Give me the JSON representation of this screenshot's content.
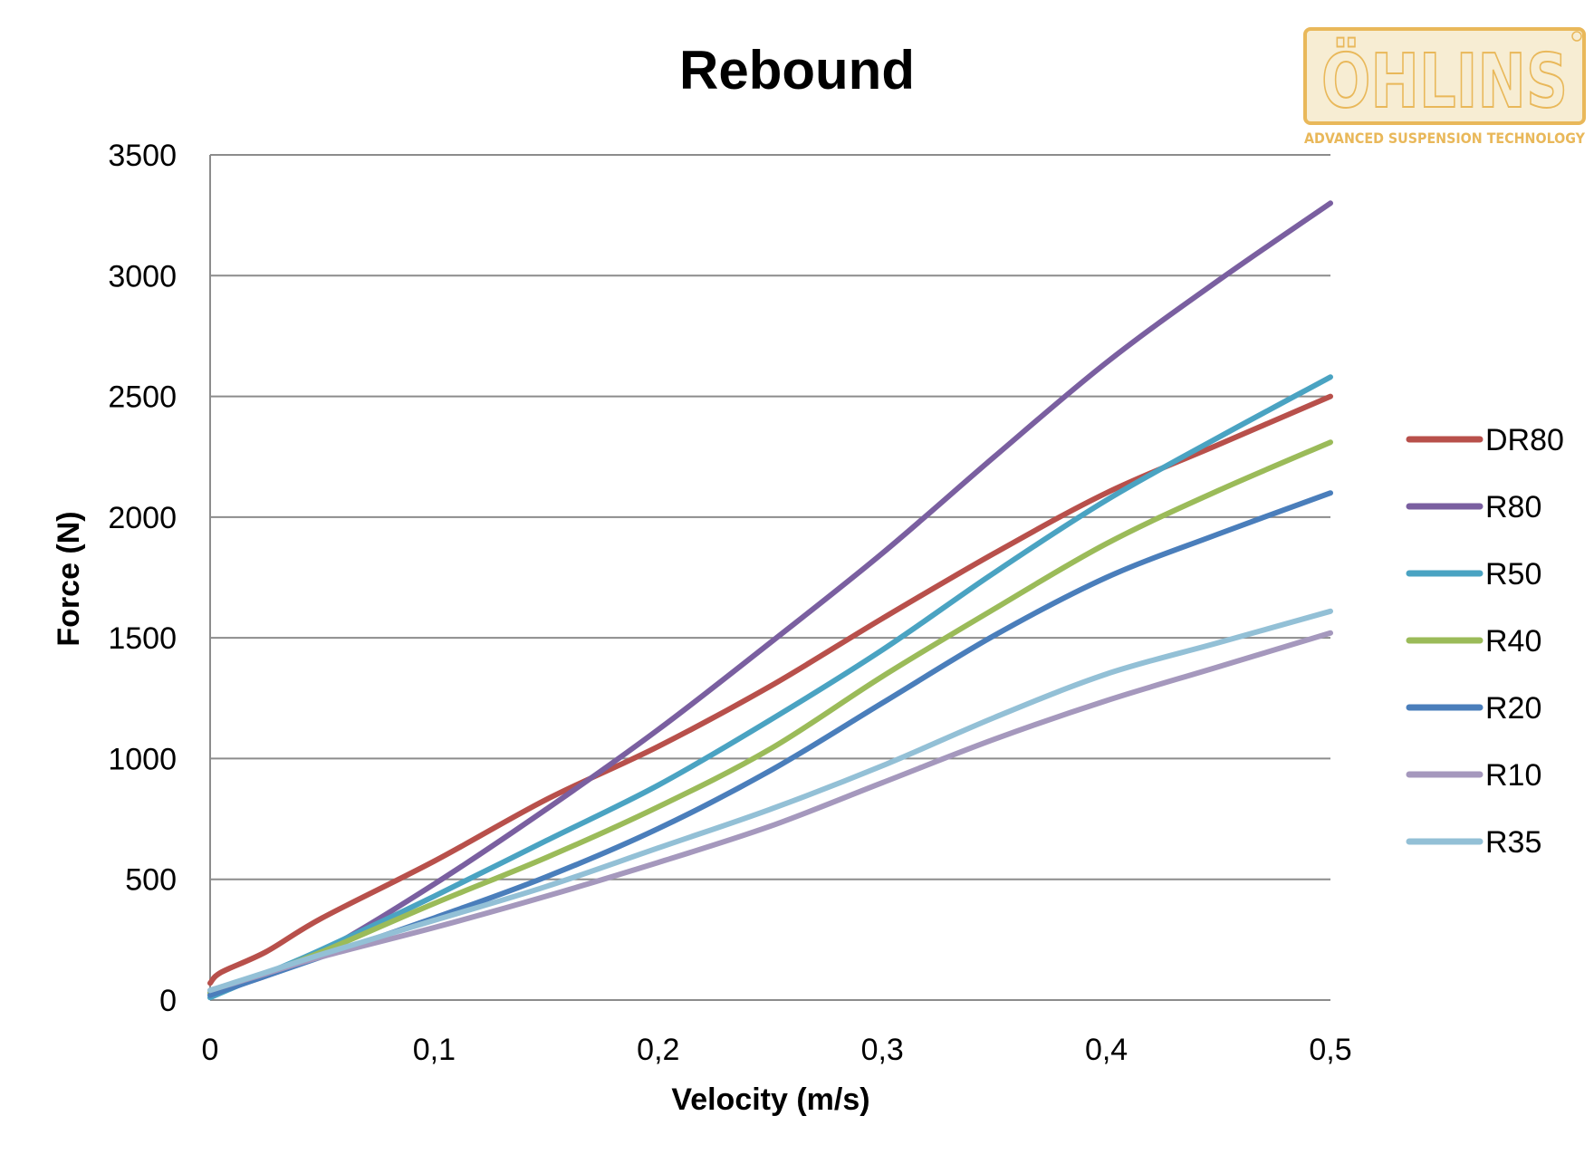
{
  "logo": {
    "name": "ÖHLINS",
    "tagline": "ADVANCED SUSPENSION TECHNOLOGY",
    "color": "#e9b85a",
    "fill": "#f7edd3"
  },
  "chart_data": {
    "type": "line",
    "title": "Rebound",
    "xlabel": "Velocity (m/s)",
    "ylabel": "Force (N)",
    "xlim": [
      0,
      0.5
    ],
    "ylim": [
      0,
      3500
    ],
    "xticks": [
      "0",
      "0,1",
      "0,2",
      "0,3",
      "0,4",
      "0,5"
    ],
    "yticks": [
      "0",
      "500",
      "1000",
      "1500",
      "2000",
      "2500",
      "3000",
      "3500"
    ],
    "grid": true,
    "legend_position": "right",
    "series": [
      {
        "name": "DR80",
        "color": "#b8504b",
        "x": [
          0,
          0.005,
          0.025,
          0.05,
          0.1,
          0.15,
          0.2,
          0.25,
          0.3,
          0.35,
          0.4,
          0.45,
          0.5
        ],
        "y": [
          70,
          115,
          200,
          340,
          575,
          830,
          1050,
          1300,
          1580,
          1850,
          2100,
          2300,
          2500
        ]
      },
      {
        "name": "R80",
        "color": "#7a5fa0",
        "x": [
          0,
          0.025,
          0.05,
          0.1,
          0.15,
          0.2,
          0.25,
          0.3,
          0.35,
          0.4,
          0.45,
          0.5
        ],
        "y": [
          30,
          100,
          200,
          480,
          790,
          1120,
          1480,
          1850,
          2250,
          2640,
          2980,
          3300
        ]
      },
      {
        "name": "R50",
        "color": "#4aa3c2",
        "x": [
          0,
          0.025,
          0.05,
          0.1,
          0.15,
          0.2,
          0.25,
          0.3,
          0.35,
          0.4,
          0.45,
          0.5
        ],
        "y": [
          10,
          110,
          210,
          430,
          660,
          890,
          1160,
          1450,
          1770,
          2070,
          2330,
          2580
        ]
      },
      {
        "name": "R40",
        "color": "#9bbb59",
        "x": [
          0,
          0.025,
          0.05,
          0.1,
          0.15,
          0.2,
          0.25,
          0.3,
          0.35,
          0.4,
          0.45,
          0.5
        ],
        "y": [
          30,
          110,
          200,
          400,
          590,
          800,
          1040,
          1340,
          1620,
          1890,
          2110,
          2310
        ]
      },
      {
        "name": "R20",
        "color": "#4a7ebb",
        "x": [
          0,
          0.025,
          0.05,
          0.1,
          0.15,
          0.2,
          0.25,
          0.3,
          0.35,
          0.4,
          0.45,
          0.5
        ],
        "y": [
          20,
          100,
          180,
          340,
          510,
          710,
          950,
          1230,
          1510,
          1750,
          1930,
          2100
        ]
      },
      {
        "name": "R10",
        "color": "#a598bd",
        "x": [
          0,
          0.025,
          0.05,
          0.1,
          0.15,
          0.2,
          0.25,
          0.3,
          0.35,
          0.4,
          0.45,
          0.5
        ],
        "y": [
          40,
          110,
          180,
          300,
          430,
          570,
          720,
          900,
          1080,
          1240,
          1380,
          1520
        ]
      },
      {
        "name": "R35",
        "color": "#93c0d6",
        "x": [
          0,
          0.025,
          0.05,
          0.1,
          0.15,
          0.2,
          0.25,
          0.3,
          0.35,
          0.4,
          0.45,
          0.5
        ],
        "y": [
          40,
          115,
          190,
          330,
          470,
          630,
          790,
          970,
          1170,
          1350,
          1480,
          1610
        ]
      }
    ]
  }
}
